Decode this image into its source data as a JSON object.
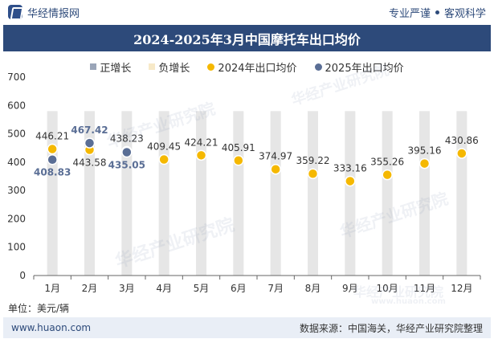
{
  "header": {
    "brand": "华经情报网",
    "tag_left": "专业严谨",
    "tag_right": "客观科学"
  },
  "title": "2024-2025年3月中国摩托车出口均价",
  "unit_label": "单位：美元/辆",
  "footer": {
    "url": "www.huaon.com",
    "source": "数据来源：中国海关，华经产业研究院整理"
  },
  "watermark": {
    "text": "华经产业研究院",
    "url_text": "www.huaon.com"
  },
  "colors": {
    "title_bg": "#2d4a7a",
    "pos_growth": "#9aa5b8",
    "neg_growth": "#f7e9c8",
    "series_2024": "#f5b800",
    "series_2025": "#5a6e95",
    "bar_bg": "#e6e6e6"
  },
  "chart_data": {
    "type": "scatter",
    "categories": [
      "1月",
      "2月",
      "3月",
      "4月",
      "5月",
      "6月",
      "7月",
      "8月",
      "9月",
      "10月",
      "11月",
      "12月"
    ],
    "ylim": [
      0,
      700
    ],
    "yticks": [
      0,
      100,
      200,
      300,
      400,
      500,
      600,
      700
    ],
    "legend": [
      {
        "name": "正增长",
        "shape": "square",
        "color_key": "pos_growth"
      },
      {
        "name": "负增长",
        "shape": "square",
        "color_key": "neg_growth"
      },
      {
        "name": "2024年出口均价",
        "shape": "circle",
        "color_key": "series_2024"
      },
      {
        "name": "2025年出口均价",
        "shape": "circle",
        "color_key": "series_2025"
      }
    ],
    "legend_position": "top-center",
    "series": [
      {
        "name": "2024年出口均价",
        "values": [
          446.21,
          443.58,
          438.23,
          409.45,
          424.21,
          405.91,
          374.97,
          359.22,
          333.16,
          355.26,
          395.16,
          430.86
        ]
      },
      {
        "name": "2025年出口均价",
        "values": [
          408.83,
          467.42,
          435.05,
          null,
          null,
          null,
          null,
          null,
          null,
          null,
          null,
          null
        ]
      }
    ],
    "background_bars": {
      "value": 580
    }
  }
}
